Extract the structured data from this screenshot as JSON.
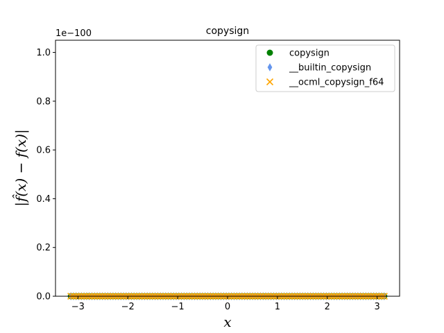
{
  "chart_data": {
    "type": "scatter",
    "title": "copysign",
    "xlabel": "x",
    "ylabel": "|f̂(x) − f(x)|",
    "y_exponent_label": "1e−100",
    "xlim": [
      -3.45,
      3.45
    ],
    "ylim": [
      0,
      1.05
    ],
    "x_ticks": [
      -3,
      -2,
      -1,
      0,
      1,
      2,
      3
    ],
    "x_tick_labels": [
      "−3",
      "−2",
      "−1",
      "0",
      "1",
      "2",
      "3"
    ],
    "y_ticks": [
      0.0,
      0.2,
      0.4,
      0.6,
      0.8,
      1.0
    ],
    "y_tick_labels": [
      "0.0",
      "0.2",
      "0.4",
      "0.6",
      "0.8",
      "1.0"
    ],
    "grid": false,
    "legend_position": "top-right",
    "series": [
      {
        "name": "copysign",
        "marker": "circle",
        "color": "#008000",
        "x_range": [
          -3.14159,
          3.14159
        ],
        "y": 0
      },
      {
        "name": "__builtin_copysign",
        "marker": "diamond",
        "color": "#6495ed",
        "x_range": [
          -3.14159,
          3.14159
        ],
        "y": 0
      },
      {
        "name": "__ocml_copysign_f64",
        "marker": "x",
        "color": "#ffa500",
        "x_range": [
          -3.14159,
          3.14159
        ],
        "y": 0
      }
    ]
  }
}
